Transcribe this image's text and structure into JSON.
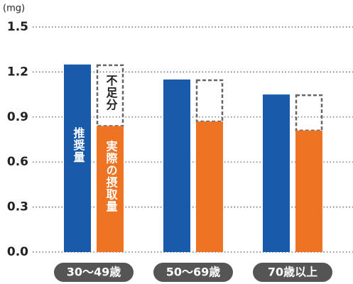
{
  "chart_data": {
    "type": "bar",
    "unit": "(mg)",
    "categories": [
      "30〜49歳",
      "50〜69歳",
      "70歳以上"
    ],
    "series": [
      {
        "name": "推奨量",
        "color": "#1a5aab",
        "values": [
          1.25,
          1.15,
          1.05
        ]
      },
      {
        "name": "実際の摂取量",
        "color": "#ee7322",
        "values": [
          0.84,
          0.87,
          0.81
        ]
      }
    ],
    "annotation": "不足分",
    "ylim": [
      0,
      1.5
    ],
    "yticks": [
      {
        "value": 0,
        "label": "0.0"
      },
      0.3,
      0.6,
      0.9,
      1.2,
      1.5
    ],
    "grid": true
  }
}
